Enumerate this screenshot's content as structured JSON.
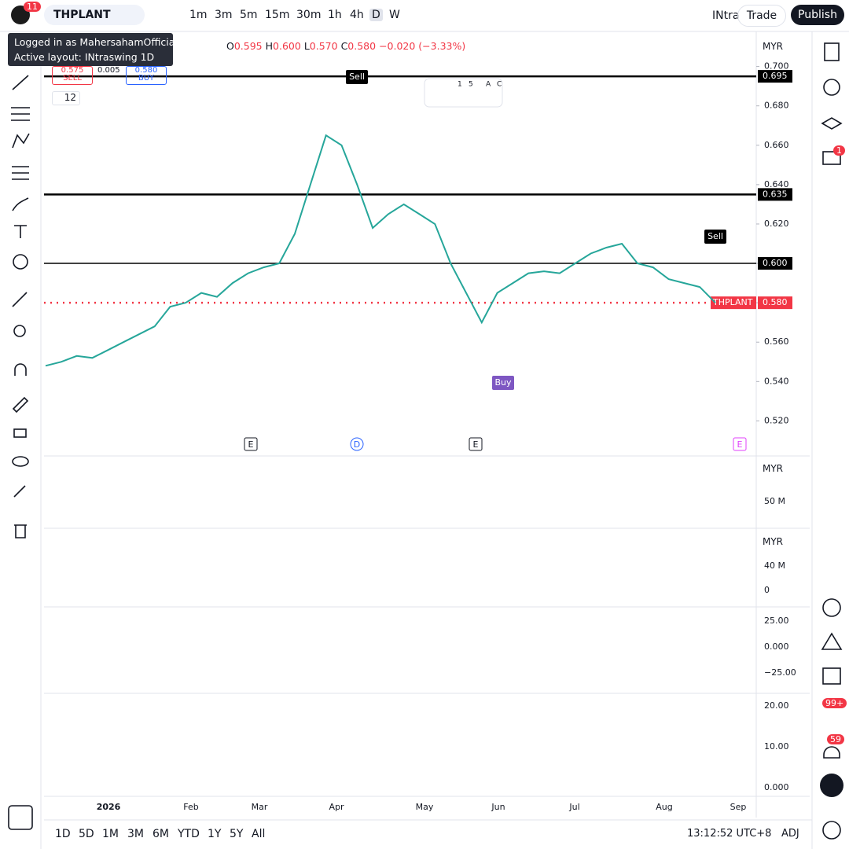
{
  "header": {
    "badge": "11",
    "symbol": "THPLANT",
    "intervals": [
      "1m",
      "3m",
      "5m",
      "15m",
      "30m",
      "1h",
      "4h",
      "D",
      "W"
    ],
    "layout": "INtra",
    "trade": "Trade",
    "publish": "Publish"
  },
  "tooltip": {
    "user": "Logged in as MahersahamOfficial",
    "layout": "Active layout: INtraswing 1D"
  },
  "legend": {
    "o_label": "O",
    "o": "0.595",
    "h_label": "H",
    "h": "0.600",
    "l_label": "L",
    "l": "0.570",
    "c_label": "C",
    "c": "0.580",
    "change": "−0.020 (−3.33%)"
  },
  "trade_widget": {
    "sell_price": "0.575",
    "sell": "SELL",
    "spread": "0.005",
    "buy_price": "0.580",
    "buy": "BUY"
  },
  "indicator_count": "12",
  "currency": "MYR",
  "widget": [
    "1",
    "5",
    "A",
    "C"
  ],
  "signals": [
    "Sell",
    "Sell",
    "Buy"
  ],
  "events": [
    "E",
    "D",
    "E",
    "E"
  ],
  "chart_data": {
    "type": "line",
    "color": "#26a69a",
    "values": [
      0.548,
      0.55,
      0.553,
      0.552,
      0.556,
      0.56,
      0.564,
      0.568,
      0.578,
      0.58,
      0.585,
      0.583,
      0.59,
      0.595,
      0.598,
      0.6,
      0.615,
      0.64,
      0.665,
      0.66,
      0.64,
      0.618,
      0.625,
      0.63,
      0.625,
      0.62,
      0.6,
      0.585,
      0.57,
      0.585,
      0.59,
      0.595,
      0.596,
      0.595,
      0.6,
      0.605,
      0.608,
      0.61,
      0.6,
      0.598,
      0.592,
      0.59,
      0.588,
      0.58
    ],
    "ylim": [
      0.503,
      0.717
    ],
    "yticks": [
      {
        "value": 0.7,
        "label": "0.700"
      },
      {
        "value": 0.68,
        "label": "0.680"
      },
      {
        "value": 0.66,
        "label": "0.660"
      },
      {
        "value": 0.64,
        "label": "0.640"
      },
      {
        "value": 0.62,
        "label": "0.620"
      },
      {
        "value": 0.6,
        "label": "0.600"
      },
      {
        "value": 0.58,
        "label": "0.580"
      },
      {
        "value": 0.56,
        "label": "0.560"
      },
      {
        "value": 0.54,
        "label": "0.540"
      },
      {
        "value": 0.52,
        "label": "0.520"
      }
    ],
    "levels": [
      {
        "value": 0.695,
        "label": "0.695"
      },
      {
        "value": 0.635,
        "label": "0.635"
      },
      {
        "value": 0.6,
        "label": "0.600"
      }
    ],
    "last_price": {
      "value": 0.58,
      "label": "0.580"
    }
  },
  "panes": [
    {
      "labels": [
        "50 M"
      ]
    },
    {
      "labels": [
        "40 M",
        "0"
      ]
    },
    {
      "labels": [
        "25.00",
        "0.000",
        "−25.00"
      ]
    },
    {
      "labels": [
        "20.00",
        "10.00",
        "0.000"
      ]
    }
  ],
  "time_axis": [
    "2026",
    "Feb",
    "Mar",
    "Apr",
    "May",
    "Jun",
    "Jul",
    "Aug",
    "Sep"
  ],
  "ranges": [
    "1D",
    "5D",
    "1M",
    "3M",
    "6M",
    "YTD",
    "1Y",
    "5Y",
    "All"
  ],
  "clock": "13:12:52 UTC+8",
  "adj": "ADJ",
  "right_badges": {
    "ideas": "1",
    "feed": "99+",
    "alerts": "59"
  }
}
